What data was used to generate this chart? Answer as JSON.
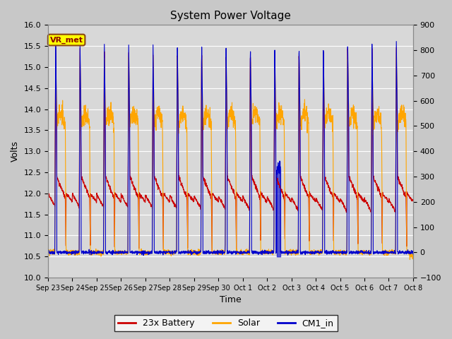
{
  "title": "System Power Voltage",
  "xlabel": "Time",
  "ylabel_left": "Volts",
  "ylim_left": [
    10.0,
    16.0
  ],
  "ylim_right": [
    -100,
    900
  ],
  "yticks_left": [
    10.0,
    10.5,
    11.0,
    11.5,
    12.0,
    12.5,
    13.0,
    13.5,
    14.0,
    14.5,
    15.0,
    15.5,
    16.0
  ],
  "yticks_right": [
    -100,
    0,
    100,
    200,
    300,
    400,
    500,
    600,
    700,
    800,
    900
  ],
  "xtick_labels": [
    "Sep 23",
    "Sep 24",
    "Sep 25",
    "Sep 26",
    "Sep 27",
    "Sep 28",
    "Sep 29",
    "Sep 30",
    "Oct 1",
    "Oct 2",
    "Oct 3",
    "Oct 4",
    "Oct 5",
    "Oct 6",
    "Oct 7",
    "Oct 8"
  ],
  "n_days": 15,
  "battery_color": "#cc0000",
  "solar_color": "#ffa500",
  "cm1_color": "#0000cc",
  "vr_met_bg": "#ffff00",
  "vr_met_border": "#8b4513",
  "vr_met_text_color": "#8b0000",
  "legend_labels": [
    "23x Battery",
    "Solar",
    "CM1_in"
  ],
  "bg_color": "#c8c8c8",
  "plot_bg_color": "#d8d8d8",
  "grid_color": "#ffffff"
}
